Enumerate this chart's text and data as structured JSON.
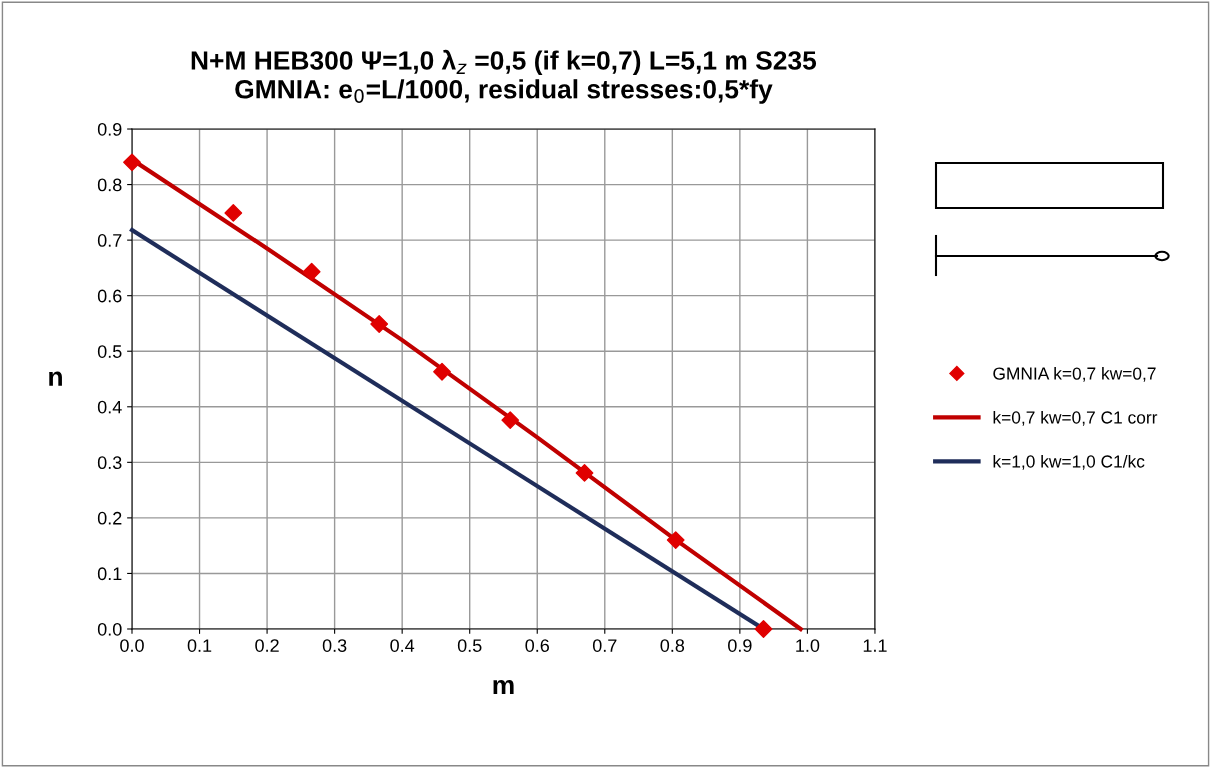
{
  "chart_data": {
    "type": "line",
    "title": "N+M HEB300 Ψ=1,0 λ$_{z}$ =0,5 (if k=0,7) L=5,1 m S235\nGMNIA: e$_{0}$=L/1000, residual stresses:0,5*fy",
    "xlabel": "m",
    "ylabel": "n",
    "series": [
      {
        "name": "GMNIA k=0,7 kw=0,7",
        "type": "scatter",
        "marker": "diamond",
        "color": "#e00000",
        "x": [
          0.0,
          0.15,
          0.266,
          0.366,
          0.459,
          0.56,
          0.67,
          0.805,
          0.935
        ],
        "values": [
          0.84,
          0.749,
          0.643,
          0.549,
          0.463,
          0.376,
          0.281,
          0.16,
          0.0
        ]
      },
      {
        "name": "k=0,7 kw=0,7 C1 corr",
        "marker": "none",
        "color": "#c00000",
        "x": [
          0.0,
          0.2,
          0.4,
          0.6,
          0.8,
          0.99
        ],
        "values": [
          0.845,
          0.685,
          0.52,
          0.345,
          0.165,
          0.0
        ]
      },
      {
        "name": "k=1,0 kw=1,0 C1/kc",
        "marker": "none",
        "color": "#1f2d5a",
        "x": [
          0.0,
          0.935
        ],
        "values": [
          0.718,
          0.0
        ]
      }
    ],
    "xlim": [
      0.0,
      1.1
    ],
    "ylim": [
      0.0,
      0.9
    ],
    "xticks": [
      {
        "value": 0.0,
        "label": "0.0"
      },
      0.1,
      0.2,
      0.3,
      0.4,
      0.5,
      0.6,
      0.7,
      0.8,
      0.9,
      {
        "value": 1.0,
        "label": "1.0"
      },
      1.1
    ],
    "yticks": [
      {
        "value": 0.0,
        "label": "0.0"
      },
      0.1,
      0.2,
      0.3,
      0.4,
      0.5,
      0.6,
      0.7,
      0.8,
      0.9
    ],
    "grid": true,
    "legend": "right",
    "line_style": "solid"
  }
}
